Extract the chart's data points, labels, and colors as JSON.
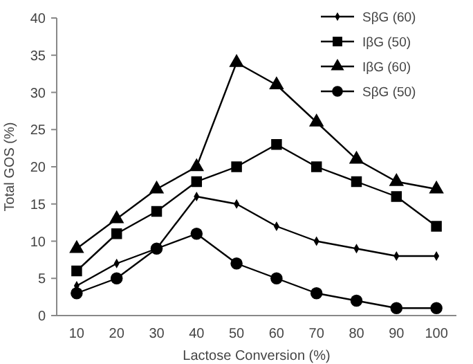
{
  "chart_data": {
    "type": "line",
    "xlabel": "Lactose Conversion (%)",
    "ylabel": "Total GOS (%)",
    "categories": [
      "10",
      "20",
      "30",
      "40",
      "50",
      "60",
      "70",
      "80",
      "90",
      "100"
    ],
    "ylim": [
      0,
      40
    ],
    "yticks": [
      0,
      5,
      10,
      15,
      20,
      25,
      30,
      35,
      40
    ],
    "grid": false,
    "legend": "top right",
    "series": [
      {
        "name": "SβG (60)",
        "color": "#000000",
        "marker": "diamond",
        "values": [
          4,
          7,
          9,
          16,
          15,
          12,
          10,
          9,
          8,
          8
        ]
      },
      {
        "name": "IβG (50)",
        "color": "#000000",
        "marker": "square",
        "values": [
          6,
          11,
          14,
          18,
          20,
          23,
          20,
          18,
          16,
          12
        ]
      },
      {
        "name": "IβG (60)",
        "color": "#000000",
        "marker": "triangle",
        "values": [
          9,
          13,
          17,
          20,
          34,
          31,
          26,
          21,
          18,
          17
        ]
      },
      {
        "name": "SβG (50)",
        "color": "#000000",
        "marker": "circle",
        "values": [
          3,
          5,
          9,
          11,
          7,
          5,
          3,
          2,
          1,
          1
        ]
      }
    ]
  }
}
